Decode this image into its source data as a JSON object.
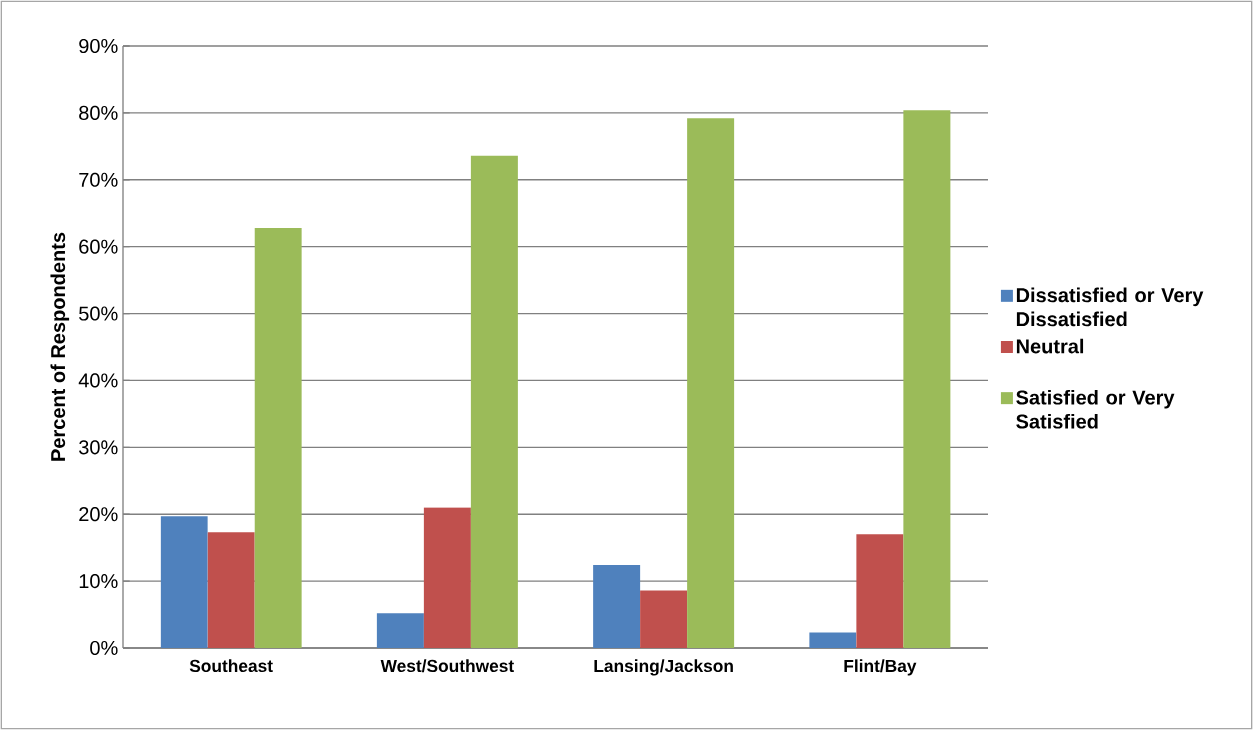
{
  "chart_data": {
    "type": "bar",
    "ylabel": "Percent of Respondents",
    "categories": [
      "Southeast",
      "West/Southwest",
      "Lansing/Jackson",
      "Flint/Bay"
    ],
    "series": [
      {
        "name": "Dissatisfied or Very Dissatisfied",
        "color": "#4f81bd",
        "values": [
          19.7,
          5.2,
          12.4,
          2.3
        ]
      },
      {
        "name": "Neutral",
        "color": "#c0504d",
        "values": [
          17.3,
          21.0,
          8.6,
          17.0
        ]
      },
      {
        "name": "Satisfied or Very Satisfied",
        "color": "#9bbb59",
        "values": [
          62.8,
          73.6,
          79.2,
          80.4
        ]
      }
    ],
    "ylim": [
      0,
      90
    ],
    "yticks": [
      {
        "value": 0,
        "label": "0%"
      },
      {
        "value": 10,
        "label": "10%"
      },
      {
        "value": 20,
        "label": "20%"
      },
      {
        "value": 30,
        "label": "30%"
      },
      {
        "value": 40,
        "label": "40%"
      },
      {
        "value": 50,
        "label": "50%"
      },
      {
        "value": 60,
        "label": "60%"
      },
      {
        "value": 70,
        "label": "70%"
      },
      {
        "value": 80,
        "label": "80%"
      },
      {
        "value": 90,
        "label": "90%"
      }
    ],
    "grid": "y",
    "legend": "right"
  }
}
